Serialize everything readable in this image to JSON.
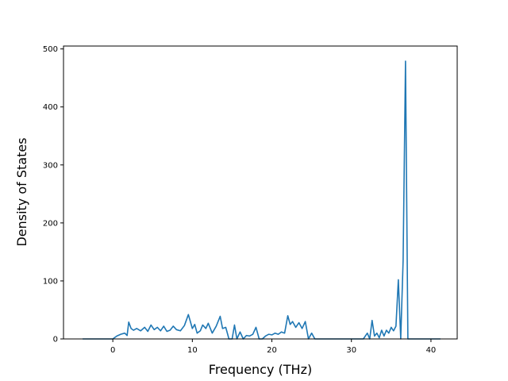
{
  "chart_data": {
    "type": "line",
    "title": "",
    "xlabel": "Frequency (THz)",
    "ylabel": "Density of States",
    "xlim": [
      -6.2,
      43.3
    ],
    "ylim": [
      0,
      505
    ],
    "xticks": [
      0,
      10,
      20,
      30,
      40
    ],
    "yticks": [
      0,
      100,
      200,
      300,
      400,
      500
    ],
    "grid": false,
    "series_color": "#1f77b4",
    "x": [
      -3.8,
      -1.0,
      0.0,
      0.5,
      1.0,
      1.5,
      1.8,
      2.0,
      2.3,
      2.6,
      3.0,
      3.5,
      4.0,
      4.4,
      4.8,
      5.2,
      5.6,
      6.0,
      6.4,
      6.8,
      7.2,
      7.6,
      8.0,
      8.5,
      9.0,
      9.5,
      10.0,
      10.3,
      10.6,
      11.0,
      11.3,
      11.7,
      12.0,
      12.5,
      13.0,
      13.5,
      13.8,
      14.2,
      14.6,
      15.0,
      15.3,
      15.6,
      16.0,
      16.4,
      16.8,
      17.2,
      17.6,
      18.0,
      18.4,
      18.8,
      19.2,
      19.6,
      20.0,
      20.4,
      20.8,
      21.2,
      21.6,
      22.0,
      22.3,
      22.6,
      23.0,
      23.4,
      23.8,
      24.2,
      24.6,
      25.0,
      25.4,
      26.0,
      28.0,
      31.5,
      32.0,
      32.3,
      32.6,
      32.9,
      33.2,
      33.5,
      33.8,
      34.1,
      34.4,
      34.7,
      35.0,
      35.3,
      35.6,
      35.9,
      36.2,
      36.5,
      36.8,
      37.1,
      37.4,
      37.7,
      38.0,
      39.5,
      41.2
    ],
    "y": [
      0,
      0,
      0,
      5,
      8,
      10,
      6,
      29,
      18,
      15,
      18,
      14,
      20,
      13,
      24,
      16,
      20,
      14,
      22,
      13,
      15,
      22,
      16,
      14,
      23,
      42,
      18,
      25,
      10,
      14,
      24,
      18,
      27,
      10,
      22,
      39,
      18,
      20,
      0,
      0,
      24,
      0,
      12,
      0,
      6,
      5,
      8,
      20,
      0,
      0,
      5,
      8,
      7,
      10,
      8,
      12,
      10,
      40,
      25,
      30,
      20,
      28,
      18,
      30,
      0,
      10,
      0,
      0,
      0,
      0,
      10,
      0,
      32,
      5,
      10,
      2,
      15,
      5,
      15,
      10,
      20,
      14,
      22,
      102,
      0,
      135,
      479,
      0,
      0,
      0,
      0,
      0,
      0
    ]
  }
}
